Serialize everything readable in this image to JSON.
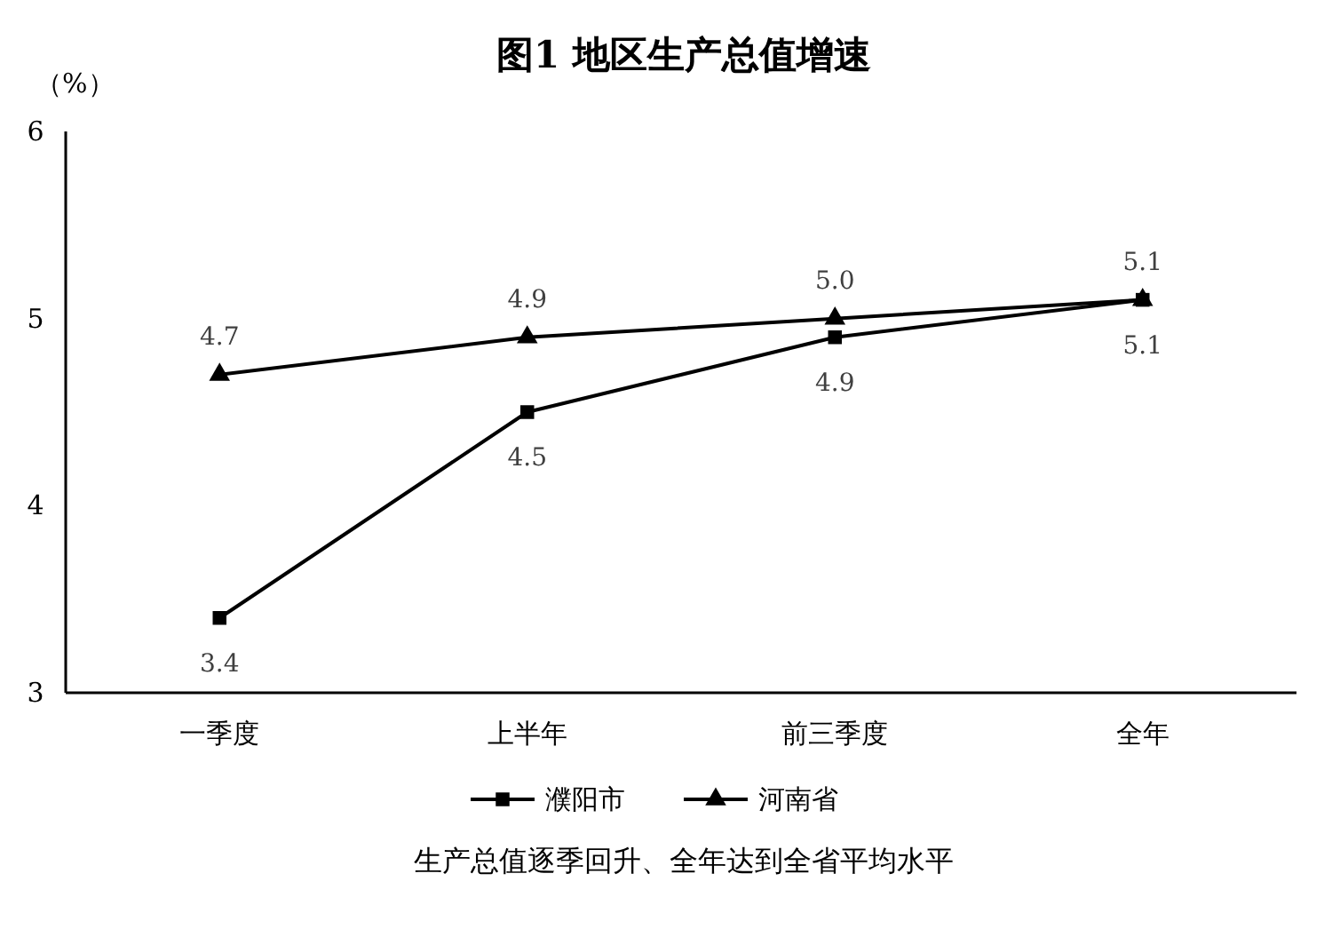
{
  "chart_data": {
    "type": "line",
    "title": "图1  地区生产总值增速",
    "ylabel": "（%）",
    "categories": [
      "一季度",
      "上半年",
      "前三季度",
      "全年"
    ],
    "series": [
      {
        "name": "濮阳市",
        "color": "#000000",
        "marker": "square",
        "values": [
          3.4,
          4.5,
          4.9,
          5.1
        ],
        "value_labels": [
          "3.4",
          "4.5",
          "4.9",
          "5.1"
        ]
      },
      {
        "name": "河南省",
        "color": "#000000",
        "marker": "triangle",
        "values": [
          4.7,
          4.9,
          5.0,
          5.1
        ],
        "value_labels": [
          "4.7",
          "4.9",
          "5.0",
          "5.1"
        ]
      }
    ],
    "ylim": [
      3,
      6
    ],
    "yticks": [
      3,
      4,
      5,
      6
    ],
    "grid": false,
    "legend": "bottom",
    "line_style": "solid",
    "annotations": [
      "生产总值逐季回升、全年达到全省平均水平"
    ]
  }
}
